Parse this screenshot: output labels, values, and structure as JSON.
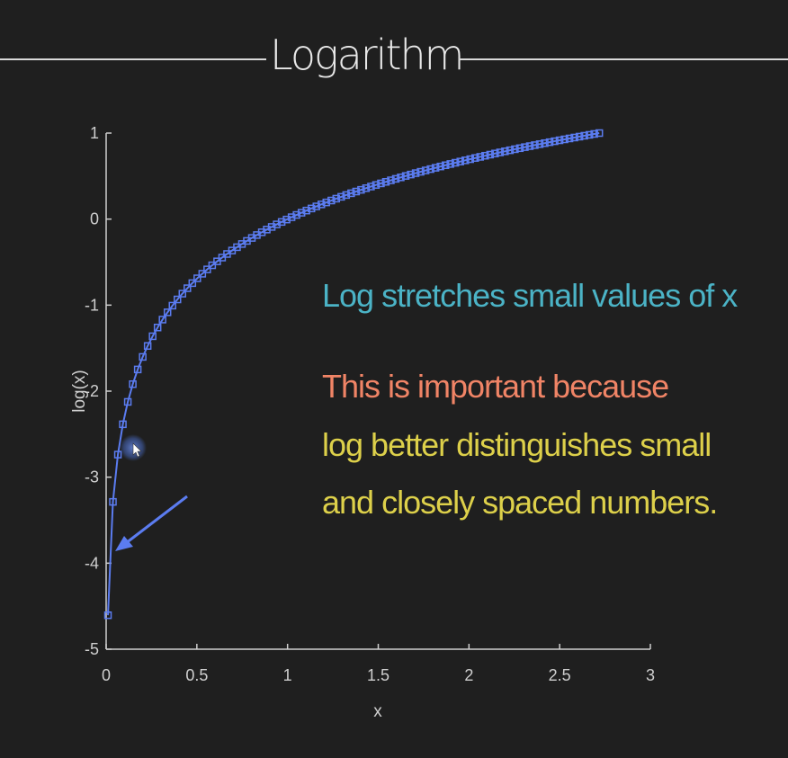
{
  "slide": {
    "title": "Logarithm",
    "annotations": [
      {
        "text": "Log stretches small values of x"
      },
      {
        "text": "This is important because"
      },
      {
        "text": "log better distinguishes small"
      },
      {
        "text": "and closely spaced numbers."
      }
    ]
  },
  "colors": {
    "background": "#1f1f1f",
    "series": "#5b7cf0",
    "annotation_cyan": "#4bb3c6",
    "annotation_orange": "#f08466",
    "annotation_yellow": "#ddd04a",
    "cursor_highlight": "#4a6fd0"
  },
  "chart_data": {
    "type": "line",
    "function": "y = log(x)",
    "marker": "square",
    "xlabel": "x",
    "ylabel": "log(x)",
    "xlim": [
      0,
      3
    ],
    "ylim": [
      -5,
      1
    ],
    "xticks": [
      0,
      0.5,
      1,
      1.5,
      2,
      2.5,
      3
    ],
    "xtick_labels": [
      "0",
      "0.5",
      "1",
      "1.5",
      "2",
      "2.5",
      "3"
    ],
    "yticks": [
      -5,
      -4,
      -3,
      -2,
      -1,
      0,
      1
    ],
    "ytick_labels": [
      "-5",
      "-4",
      "-3",
      "-2",
      "-1",
      "0",
      "1"
    ],
    "x_range": [
      0.01,
      2.7183
    ],
    "point_count": 100,
    "grid": false,
    "legend": false
  }
}
